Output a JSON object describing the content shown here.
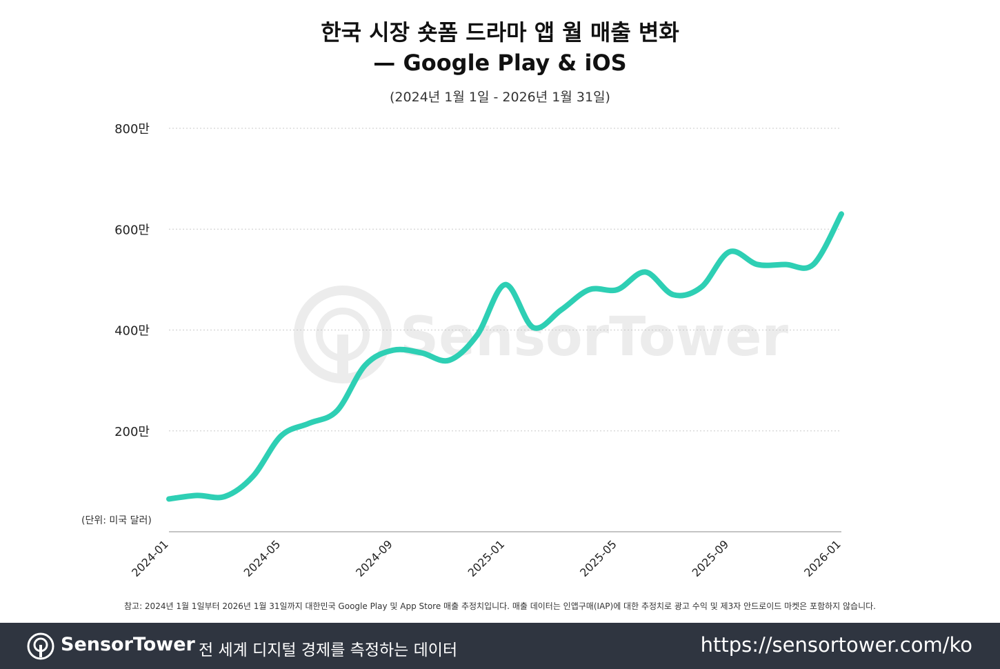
{
  "title_line1": "한국 시장 숏폼 드라마 앱 월 매출 변화",
  "title_line2": "— Google Play & iOS",
  "subtitle": "(2024년 1월 1일 - 2026년 1월 31일)",
  "unit_label": "(단위: 미국 달러)",
  "watermark": "SensorTower",
  "footnote": "참고: 2024년 1월 1일부터 2026년 1월 31일까지 대한민국 Google Play 및 App Store 매출 추정치입니다. 매출 데이터는 인앱구매(IAP)에 대한 추정치로 광고 수익 및 제3자 안드로이드 마켓은 포함하지 않습니다.",
  "footer": {
    "brand": "SensorTower",
    "tagline": "전 세계 디지털 경제를 측정하는 데이터",
    "url": "https://sensortower.com/ko"
  },
  "colors": {
    "line": "#2ecfb4",
    "footer_bg": "#2f3540"
  },
  "chart_data": {
    "type": "line",
    "ylim": [
      0,
      8000000
    ],
    "yticks": [
      {
        "value": 2000000,
        "label": "200만"
      },
      {
        "value": 4000000,
        "label": "400만"
      },
      {
        "value": 6000000,
        "label": "600만"
      },
      {
        "value": 8000000,
        "label": "800만"
      }
    ],
    "x": [
      "2024-01",
      "2024-02",
      "2024-03",
      "2024-04",
      "2024-05",
      "2024-06",
      "2024-07",
      "2024-08",
      "2024-09",
      "2024-10",
      "2024-11",
      "2024-12",
      "2025-01",
      "2025-02",
      "2025-03",
      "2025-04",
      "2025-05",
      "2025-06",
      "2025-07",
      "2025-08",
      "2025-09",
      "2025-10",
      "2025-11",
      "2025-12",
      "2026-01"
    ],
    "xtick_labels": [
      "2024-01",
      "2024-05",
      "2024-09",
      "2025-01",
      "2025-05",
      "2025-09",
      "2026-01"
    ],
    "series": [
      {
        "values": [
          650000,
          720000,
          700000,
          1100000,
          1900000,
          2150000,
          2400000,
          3300000,
          3600000,
          3550000,
          3400000,
          3900000,
          4900000,
          4050000,
          4400000,
          4800000,
          4800000,
          5150000,
          4700000,
          4850000,
          5550000,
          5300000,
          5300000,
          5300000,
          6300000
        ]
      }
    ],
    "grid": true
  }
}
